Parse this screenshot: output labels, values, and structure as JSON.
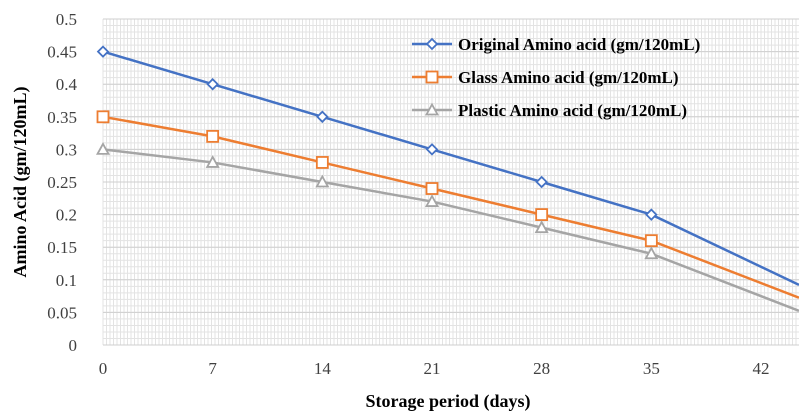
{
  "chart_data": {
    "type": "line",
    "title": "",
    "xlabel": "Storage period (days)",
    "ylabel": "Amino Acid (gm/120mL)",
    "x": [
      0,
      7,
      14,
      21,
      28,
      35,
      42
    ],
    "x_ticks": [
      "0",
      "7",
      "14",
      "21",
      "28",
      "35",
      "42"
    ],
    "y_ticks": [
      "0",
      "0.05",
      "0.1",
      "0.15",
      "0.2",
      "0.25",
      "0.3",
      "0.35",
      "0.4",
      "0.45",
      "0.5"
    ],
    "xlim": [
      0,
      44.4
    ],
    "ylim": [
      0,
      0.5
    ],
    "grid": true,
    "legend_position": "top-right",
    "series": [
      {
        "name": "Original Amino acid (gm/120mL)",
        "color": "#4472C4",
        "marker": "diamond",
        "values": [
          0.45,
          0.4,
          0.35,
          0.3,
          0.25,
          0.2,
          0.12
        ]
      },
      {
        "name": "Glass Amino acid (gm/120mL)",
        "color": "#ED7D31",
        "marker": "square",
        "values": [
          0.35,
          0.32,
          0.28,
          0.24,
          0.2,
          0.16,
          0.095
        ]
      },
      {
        "name": "Plastic Amino acid (gm/120mL)",
        "color": "#A5A5A5",
        "marker": "triangle",
        "values": [
          0.3,
          0.28,
          0.25,
          0.22,
          0.18,
          0.14,
          0.075
        ]
      }
    ]
  }
}
